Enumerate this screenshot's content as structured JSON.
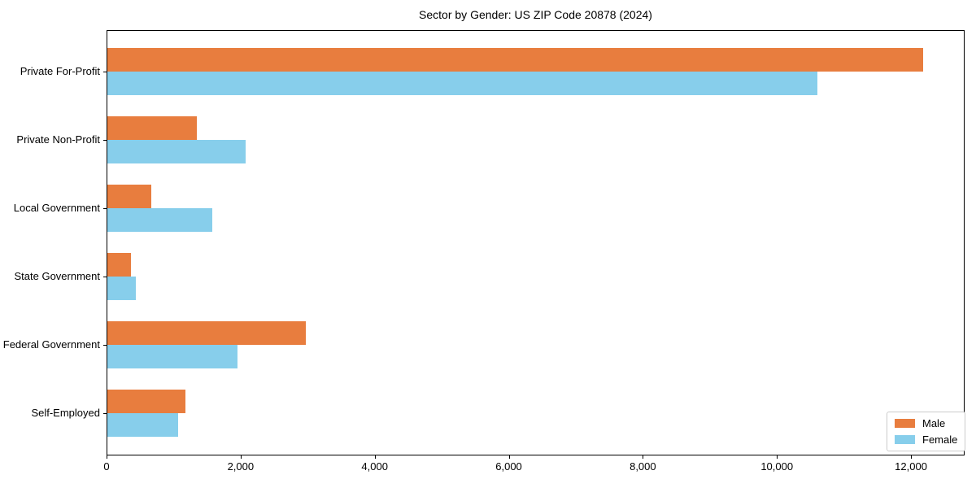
{
  "figure": {
    "title": "Sector by Gender: US ZIP Code 20878 (2024)"
  },
  "chart_data": {
    "type": "bar",
    "orientation": "horizontal",
    "title": "Sector by Gender: US ZIP Code 20878 (2024)",
    "categories": [
      "Private For-Profit",
      "Private Non-Profit",
      "Local Government",
      "State Government",
      "Federal Government",
      "Self-Employed"
    ],
    "series": [
      {
        "name": "Male",
        "color": "#e87d3e",
        "values": [
          12170,
          1340,
          650,
          350,
          2960,
          1160
        ]
      },
      {
        "name": "Female",
        "color": "#87ceeb",
        "values": [
          10590,
          2060,
          1560,
          420,
          1940,
          1060
        ]
      }
    ],
    "xlabel": "",
    "ylabel": "",
    "xlim": [
      0,
      12800
    ],
    "xticks": [
      0,
      2000,
      4000,
      6000,
      8000,
      10000,
      12000
    ],
    "xtick_labels": [
      "0",
      "2,000",
      "4,000",
      "6,000",
      "8,000",
      "10,000",
      "12,000"
    ],
    "grid": false,
    "legend": {
      "position": "lower right",
      "entries": [
        "Male",
        "Female"
      ]
    }
  }
}
